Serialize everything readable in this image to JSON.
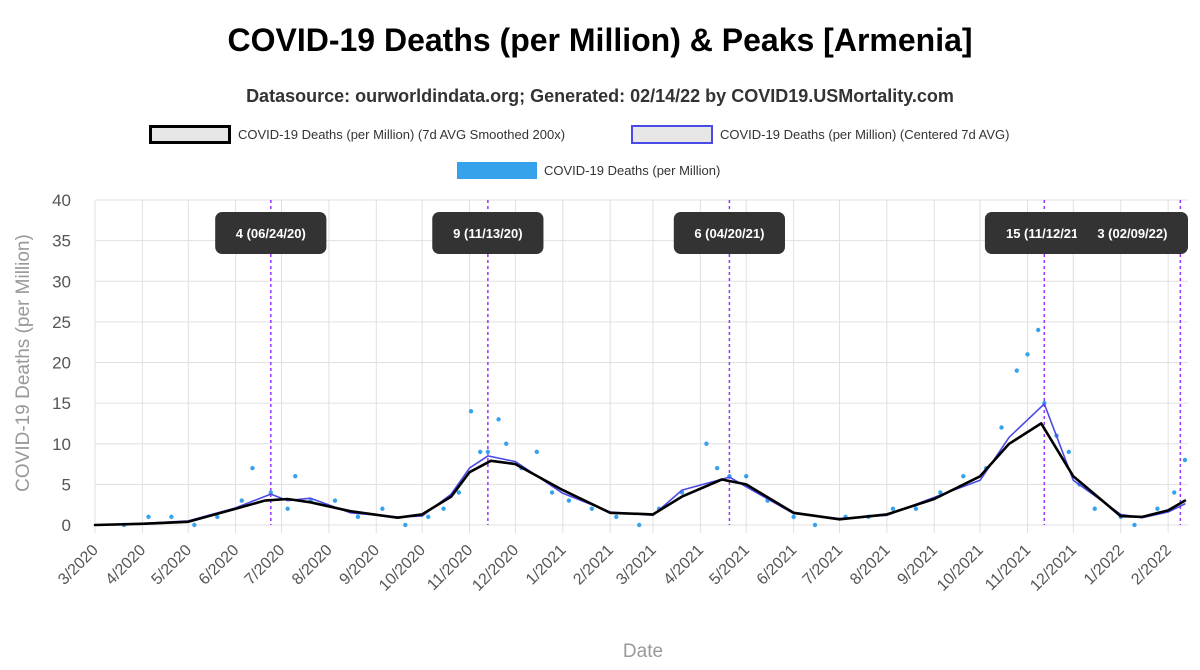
{
  "title": "COVID-19 Deaths (per Million) & Peaks [Armenia]",
  "subtitle": "Datasource: ourworldindata.org; Generated: 02/14/22 by COVID19.USMortality.com",
  "legend": {
    "smoothed": "COVID-19 Deaths (per Million) (7d AVG Smoothed 200x)",
    "centered": "COVID-19 Deaths (per Million) (Centered 7d AVG)",
    "raw": "COVID-19 Deaths (per Million)"
  },
  "colors": {
    "smoothed": "#000000",
    "centered": "#4a4ae8",
    "raw": "#36a2eb",
    "peak_line": "#9933ff",
    "grid": "#e0e0e0",
    "annotation_bg": "#333333"
  },
  "chart_data": {
    "type": "line",
    "xlabel": "Date",
    "ylabel": "COVID-19 Deaths (per Million)",
    "ylim": [
      0,
      40
    ],
    "yticks": [
      0,
      5,
      10,
      15,
      20,
      25,
      30,
      35,
      40
    ],
    "date_start": "2020-03-01",
    "date_end": "2022-02-14",
    "month_ticks": [
      "3/2020",
      "4/2020",
      "5/2020",
      "6/2020",
      "7/2020",
      "8/2020",
      "9/2020",
      "10/2020",
      "11/2020",
      "12/2020",
      "1/2021",
      "2/2021",
      "3/2021",
      "4/2021",
      "5/2021",
      "6/2021",
      "7/2021",
      "8/2021",
      "9/2021",
      "10/2021",
      "11/2021",
      "12/2021",
      "1/2022",
      "2/2022"
    ],
    "series": [
      {
        "name": "COVID-19 Deaths (per Million) (7d AVG Smoothed 200x)",
        "points": [
          [
            "2020-03-01",
            0
          ],
          [
            "2020-04-01",
            0.15
          ],
          [
            "2020-05-01",
            0.4
          ],
          [
            "2020-06-01",
            2.0
          ],
          [
            "2020-06-20",
            3.0
          ],
          [
            "2020-07-05",
            3.2
          ],
          [
            "2020-07-20",
            2.8
          ],
          [
            "2020-08-15",
            1.7
          ],
          [
            "2020-09-15",
            0.9
          ],
          [
            "2020-10-01",
            1.3
          ],
          [
            "2020-10-20",
            3.5
          ],
          [
            "2020-11-01",
            6.5
          ],
          [
            "2020-11-15",
            7.9
          ],
          [
            "2020-12-01",
            7.5
          ],
          [
            "2021-01-01",
            4.3
          ],
          [
            "2021-02-01",
            1.5
          ],
          [
            "2021-03-01",
            1.3
          ],
          [
            "2021-03-20",
            3.5
          ],
          [
            "2021-04-15",
            5.6
          ],
          [
            "2021-05-01",
            5.0
          ],
          [
            "2021-06-01",
            1.5
          ],
          [
            "2021-07-01",
            0.7
          ],
          [
            "2021-08-01",
            1.3
          ],
          [
            "2021-09-01",
            3.2
          ],
          [
            "2021-10-01",
            6.0
          ],
          [
            "2021-10-20",
            10.0
          ],
          [
            "2021-11-10",
            12.5
          ],
          [
            "2021-12-01",
            6.0
          ],
          [
            "2022-01-01",
            1.1
          ],
          [
            "2022-01-15",
            1.0
          ],
          [
            "2022-02-01",
            1.8
          ],
          [
            "2022-02-12",
            3.0
          ]
        ]
      },
      {
        "name": "COVID-19 Deaths (per Million) (Centered 7d AVG)",
        "points": [
          [
            "2020-03-01",
            0
          ],
          [
            "2020-04-01",
            0.2
          ],
          [
            "2020-05-01",
            0.5
          ],
          [
            "2020-06-01",
            2.1
          ],
          [
            "2020-06-24",
            3.8
          ],
          [
            "2020-07-05",
            3.0
          ],
          [
            "2020-07-20",
            3.3
          ],
          [
            "2020-08-15",
            1.5
          ],
          [
            "2020-09-15",
            1.0
          ],
          [
            "2020-10-01",
            1.1
          ],
          [
            "2020-10-20",
            3.8
          ],
          [
            "2020-11-01",
            7.0
          ],
          [
            "2020-11-13",
            8.5
          ],
          [
            "2020-12-01",
            7.8
          ],
          [
            "2021-01-01",
            3.9
          ],
          [
            "2021-02-01",
            1.6
          ],
          [
            "2021-03-01",
            1.2
          ],
          [
            "2021-03-20",
            4.3
          ],
          [
            "2021-04-20",
            5.9
          ],
          [
            "2021-05-01",
            4.7
          ],
          [
            "2021-06-01",
            1.4
          ],
          [
            "2021-07-01",
            0.8
          ],
          [
            "2021-08-01",
            1.2
          ],
          [
            "2021-09-01",
            3.4
          ],
          [
            "2021-10-01",
            5.5
          ],
          [
            "2021-10-20",
            10.8
          ],
          [
            "2021-11-12",
            14.9
          ],
          [
            "2021-12-01",
            5.5
          ],
          [
            "2022-01-01",
            1.3
          ],
          [
            "2022-01-15",
            0.9
          ],
          [
            "2022-02-01",
            1.6
          ],
          [
            "2022-02-12",
            2.6
          ]
        ]
      },
      {
        "name": "COVID-19 Deaths (per Million)",
        "points": [
          [
            "2020-03-20",
            0
          ],
          [
            "2020-04-05",
            1
          ],
          [
            "2020-04-20",
            1
          ],
          [
            "2020-05-05",
            0
          ],
          [
            "2020-05-20",
            1
          ],
          [
            "2020-06-05",
            3
          ],
          [
            "2020-06-12",
            7
          ],
          [
            "2020-06-24",
            4
          ],
          [
            "2020-07-05",
            2
          ],
          [
            "2020-07-10",
            6
          ],
          [
            "2020-07-20",
            3
          ],
          [
            "2020-08-05",
            3
          ],
          [
            "2020-08-20",
            1
          ],
          [
            "2020-09-05",
            2
          ],
          [
            "2020-09-20",
            0
          ],
          [
            "2020-10-05",
            1
          ],
          [
            "2020-10-15",
            2
          ],
          [
            "2020-10-25",
            4
          ],
          [
            "2020-11-02",
            14
          ],
          [
            "2020-11-08",
            9
          ],
          [
            "2020-11-13",
            9
          ],
          [
            "2020-11-20",
            13
          ],
          [
            "2020-11-25",
            10
          ],
          [
            "2020-12-05",
            7
          ],
          [
            "2020-12-15",
            9
          ],
          [
            "2020-12-25",
            4
          ],
          [
            "2021-01-05",
            3
          ],
          [
            "2021-01-20",
            2
          ],
          [
            "2021-02-05",
            1
          ],
          [
            "2021-02-20",
            0
          ],
          [
            "2021-03-05",
            2
          ],
          [
            "2021-03-20",
            4
          ],
          [
            "2021-04-05",
            10
          ],
          [
            "2021-04-12",
            7
          ],
          [
            "2021-04-20",
            6
          ],
          [
            "2021-05-01",
            6
          ],
          [
            "2021-05-15",
            3
          ],
          [
            "2021-06-01",
            1
          ],
          [
            "2021-06-15",
            0
          ],
          [
            "2021-07-05",
            1
          ],
          [
            "2021-07-20",
            1
          ],
          [
            "2021-08-05",
            2
          ],
          [
            "2021-08-20",
            2
          ],
          [
            "2021-09-05",
            4
          ],
          [
            "2021-09-20",
            6
          ],
          [
            "2021-10-05",
            7
          ],
          [
            "2021-10-15",
            12
          ],
          [
            "2021-10-25",
            19
          ],
          [
            "2021-11-01",
            21
          ],
          [
            "2021-11-08",
            24
          ],
          [
            "2021-11-12",
            15
          ],
          [
            "2021-11-20",
            11
          ],
          [
            "2021-11-28",
            9
          ],
          [
            "2021-12-05",
            5
          ],
          [
            "2021-12-15",
            2
          ],
          [
            "2022-01-01",
            1
          ],
          [
            "2022-01-10",
            0
          ],
          [
            "2022-01-25",
            2
          ],
          [
            "2022-02-05",
            4
          ],
          [
            "2022-02-12",
            8
          ]
        ]
      }
    ],
    "peaks": [
      {
        "date": "2020-06-24",
        "label": "4 (06/24/20)"
      },
      {
        "date": "2020-11-13",
        "label": "9 (11/13/20)"
      },
      {
        "date": "2021-04-20",
        "label": "6 (04/20/21)"
      },
      {
        "date": "2021-11-12",
        "label": "15 (11/12/21)"
      },
      {
        "date": "2022-02-09",
        "label": "3 (02/09/22)"
      }
    ]
  }
}
